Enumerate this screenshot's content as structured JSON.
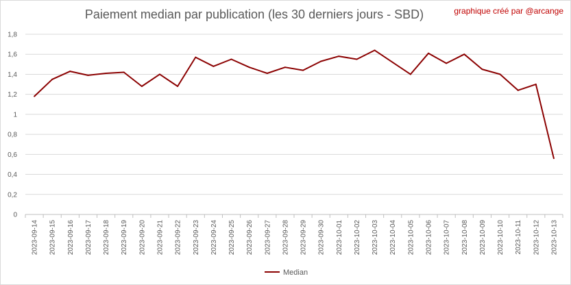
{
  "chart_data": {
    "type": "line",
    "title": "Paiement median par publication (les 30 derniers jours - SBD)",
    "credit": "graphique créé par @arcange",
    "xlabel": "",
    "ylabel": "",
    "ylim": [
      0,
      1.8
    ],
    "yticks": [
      "0",
      "0,2",
      "0,4",
      "0,6",
      "0,8",
      "1",
      "1,2",
      "1,4",
      "1,6",
      "1,8"
    ],
    "grid": true,
    "legend": "bottom",
    "color": "#8b0000",
    "categories": [
      "2023-09-14",
      "2023-09-15",
      "2023-09-16",
      "2023-09-17",
      "2023-09-18",
      "2023-09-19",
      "2023-09-20",
      "2023-09-21",
      "2023-09-22",
      "2023-09-23",
      "2023-09-24",
      "2023-09-25",
      "2023-09-26",
      "2023-09-27",
      "2023-09-28",
      "2023-09-29",
      "2023-09-30",
      "2023-10-01",
      "2023-10-02",
      "2023-10-03",
      "2023-10-04",
      "2023-10-05",
      "2023-10-06",
      "2023-10-07",
      "2023-10-08",
      "2023-10-09",
      "2023-10-10",
      "2023-10-11",
      "2023-10-12",
      "2023-10-13"
    ],
    "series": [
      {
        "name": "Median",
        "values": [
          1.18,
          1.35,
          1.43,
          1.39,
          1.41,
          1.42,
          1.28,
          1.4,
          1.28,
          1.57,
          1.48,
          1.55,
          1.47,
          1.41,
          1.47,
          1.44,
          1.53,
          1.58,
          1.55,
          1.64,
          1.52,
          1.4,
          1.61,
          1.51,
          1.6,
          1.45,
          1.4,
          1.24,
          1.3,
          0.56
        ]
      }
    ]
  }
}
